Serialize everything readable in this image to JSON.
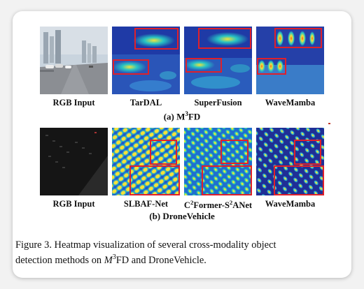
{
  "section_a": {
    "labels": [
      "RGB Input",
      "TarDAL",
      "SuperFusion",
      "WaveMamba"
    ],
    "title_prefix": "(a) M",
    "title_sup": "3",
    "title_suffix": "FD"
  },
  "section_b": {
    "label_rgb": "RGB Input",
    "label_slbaf": "SLBAF-Net",
    "label_c2_a": "C",
    "label_c2_sup1": "2",
    "label_c2_b": "Former-S",
    "label_c2_sup2": "2",
    "label_c2_c": "ANet",
    "label_wave": "WaveMamba",
    "title": "(b) DroneVehicle"
  },
  "caption": {
    "line1": "Figure 3.  Heatmap visualization of several cross-modality object",
    "line2_pre": "detection methods on ",
    "line2_m": "M",
    "line2_sup": "3",
    "line2_post": "FD and DroneVehicle."
  },
  "colors": {
    "heat_low": "#1f3aa6",
    "heat_mid": "#27c4c4",
    "heat_high": "#f3e33a",
    "box": "#e0202a"
  }
}
